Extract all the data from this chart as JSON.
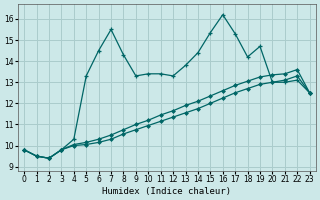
{
  "xlabel": "Humidex (Indice chaleur)",
  "background_color": "#cce8e8",
  "grid_color": "#aacccc",
  "line_color": "#006666",
  "xlim": [
    -0.5,
    23.5
  ],
  "ylim": [
    8.8,
    16.7
  ],
  "yticks": [
    9,
    10,
    11,
    12,
    13,
    14,
    15,
    16
  ],
  "xticks": [
    0,
    1,
    2,
    3,
    4,
    5,
    6,
    7,
    8,
    9,
    10,
    11,
    12,
    13,
    14,
    15,
    16,
    17,
    18,
    19,
    20,
    21,
    22,
    23
  ],
  "series1_x": [
    0,
    1,
    2,
    3,
    4,
    5,
    6,
    7,
    8,
    9,
    10,
    11,
    12,
    13,
    14,
    15,
    16,
    17,
    18,
    19,
    20,
    21,
    22,
    23
  ],
  "series1_y": [
    9.8,
    9.5,
    9.4,
    9.8,
    10.3,
    13.3,
    14.5,
    15.5,
    14.3,
    13.3,
    13.4,
    13.4,
    13.3,
    13.8,
    14.4,
    15.35,
    16.2,
    15.3,
    14.2,
    14.7,
    13.0,
    13.0,
    13.1,
    12.5
  ],
  "series2_x": [
    0,
    1,
    2,
    3,
    4,
    5,
    6,
    7,
    8,
    9,
    10,
    11,
    12,
    13,
    14,
    15,
    16,
    17,
    18,
    19,
    20,
    21,
    22,
    23
  ],
  "series2_y": [
    9.8,
    9.5,
    9.4,
    9.8,
    10.05,
    10.15,
    10.3,
    10.5,
    10.75,
    11.0,
    11.2,
    11.45,
    11.65,
    11.9,
    12.1,
    12.35,
    12.6,
    12.85,
    13.05,
    13.25,
    13.35,
    13.4,
    13.6,
    12.5
  ],
  "series3_x": [
    0,
    1,
    2,
    3,
    4,
    5,
    6,
    7,
    8,
    9,
    10,
    11,
    12,
    13,
    14,
    15,
    16,
    17,
    18,
    19,
    20,
    21,
    22,
    23
  ],
  "series3_y": [
    9.8,
    9.5,
    9.4,
    9.8,
    10.0,
    10.05,
    10.15,
    10.3,
    10.55,
    10.75,
    10.95,
    11.15,
    11.35,
    11.55,
    11.75,
    12.0,
    12.25,
    12.5,
    12.7,
    12.9,
    13.0,
    13.1,
    13.3,
    12.5
  ]
}
